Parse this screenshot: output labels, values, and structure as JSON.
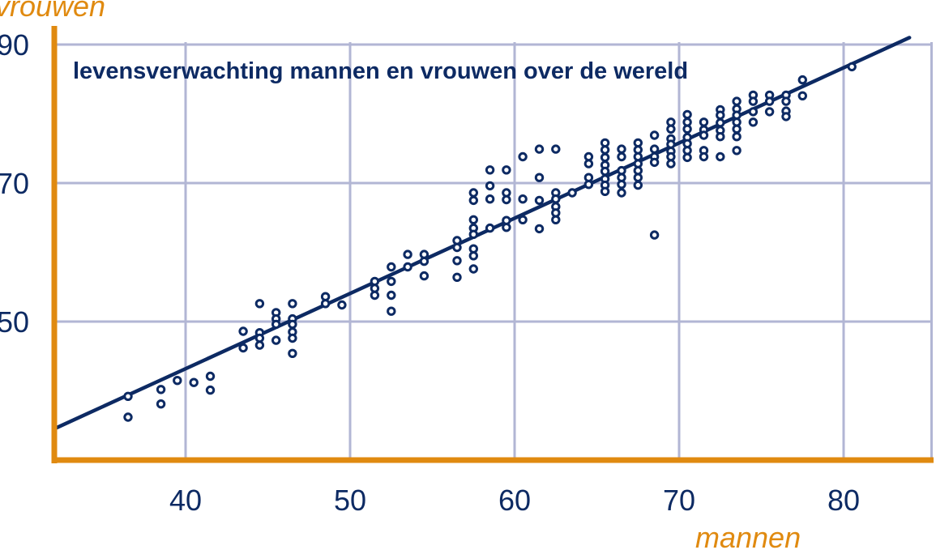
{
  "colors": {
    "grid": "#b2b6d4",
    "axis": "#e08a10",
    "point": "#0d2a63",
    "trendline": "#0d2a63",
    "text": "#0d2a63",
    "axis_title": "#e08a10"
  },
  "chart_data": {
    "type": "scatter",
    "title": "levensverwachting mannen en vrouwen over de wereld",
    "xlabel": "mannen",
    "ylabel": "vrouwen",
    "xlim": [
      32,
      85
    ],
    "ylim": [
      30,
      91
    ],
    "xticks": [
      40,
      50,
      60,
      70,
      80
    ],
    "yticks": [
      50,
      70,
      90
    ],
    "grid": true,
    "legend": "none",
    "trendline": {
      "x": [
        32,
        84
      ],
      "y": [
        34.5,
        91
      ]
    },
    "points": [
      [
        36.5,
        39.2
      ],
      [
        36.5,
        36.2
      ],
      [
        38.5,
        40.2
      ],
      [
        38.5,
        38.1
      ],
      [
        39.5,
        41.5
      ],
      [
        40.5,
        41.2
      ],
      [
        41.5,
        42.1
      ],
      [
        41.5,
        40.1
      ],
      [
        43.5,
        48.6
      ],
      [
        43.5,
        46.2
      ],
      [
        44.5,
        52.6
      ],
      [
        44.5,
        48.4
      ],
      [
        44.5,
        47.6
      ],
      [
        44.5,
        46.6
      ],
      [
        45.5,
        51.3
      ],
      [
        45.5,
        50.4
      ],
      [
        45.5,
        49.6
      ],
      [
        45.5,
        47.3
      ],
      [
        46.5,
        52.6
      ],
      [
        46.5,
        50.4
      ],
      [
        46.5,
        49.6
      ],
      [
        46.5,
        48.5
      ],
      [
        46.5,
        47.6
      ],
      [
        46.5,
        45.4
      ],
      [
        48.5,
        53.6
      ],
      [
        48.5,
        52.6
      ],
      [
        49.5,
        52.4
      ],
      [
        51.5,
        55.8
      ],
      [
        51.5,
        54.8
      ],
      [
        51.5,
        53.8
      ],
      [
        52.5,
        57.9
      ],
      [
        52.5,
        55.8
      ],
      [
        52.5,
        53.8
      ],
      [
        52.5,
        51.5
      ],
      [
        53.5,
        59.7
      ],
      [
        53.5,
        57.9
      ],
      [
        54.5,
        59.7
      ],
      [
        54.5,
        58.7
      ],
      [
        54.5,
        56.6
      ],
      [
        56.5,
        61.7
      ],
      [
        56.5,
        60.7
      ],
      [
        56.5,
        58.8
      ],
      [
        56.5,
        56.4
      ],
      [
        57.5,
        68.6
      ],
      [
        57.5,
        67.5
      ],
      [
        57.5,
        64.7
      ],
      [
        57.5,
        63.5
      ],
      [
        57.5,
        62.6
      ],
      [
        57.5,
        60.5
      ],
      [
        57.5,
        59.5
      ],
      [
        57.5,
        57.6
      ],
      [
        58.5,
        71.9
      ],
      [
        58.5,
        69.6
      ],
      [
        58.5,
        67.7
      ],
      [
        58.5,
        63.5
      ],
      [
        59.5,
        71.9
      ],
      [
        59.5,
        68.6
      ],
      [
        59.5,
        67.6
      ],
      [
        59.5,
        64.6
      ],
      [
        59.5,
        63.6
      ],
      [
        60.5,
        73.8
      ],
      [
        60.5,
        67.7
      ],
      [
        60.5,
        64.7
      ],
      [
        61.5,
        74.9
      ],
      [
        61.5,
        70.8
      ],
      [
        61.5,
        67.5
      ],
      [
        61.5,
        63.4
      ],
      [
        62.5,
        74.9
      ],
      [
        62.5,
        68.6
      ],
      [
        62.5,
        67.7
      ],
      [
        62.5,
        66.6
      ],
      [
        62.5,
        65.7
      ],
      [
        62.5,
        64.7
      ],
      [
        63.5,
        68.6
      ],
      [
        64.5,
        73.8
      ],
      [
        64.5,
        72.8
      ],
      [
        64.5,
        70.8
      ],
      [
        64.5,
        69.8
      ],
      [
        65.5,
        75.8
      ],
      [
        65.5,
        74.8
      ],
      [
        65.5,
        73.7
      ],
      [
        65.5,
        72.6
      ],
      [
        65.5,
        71.7
      ],
      [
        65.5,
        70.6
      ],
      [
        65.5,
        69.7
      ],
      [
        65.5,
        68.8
      ],
      [
        66.5,
        74.9
      ],
      [
        66.5,
        73.8
      ],
      [
        66.5,
        71.8
      ],
      [
        66.5,
        70.8
      ],
      [
        66.5,
        69.8
      ],
      [
        66.5,
        68.6
      ],
      [
        67.5,
        75.8
      ],
      [
        67.5,
        74.8
      ],
      [
        67.5,
        73.8
      ],
      [
        67.5,
        72.8
      ],
      [
        67.5,
        71.8
      ],
      [
        67.5,
        70.8
      ],
      [
        67.5,
        69.7
      ],
      [
        68.5,
        76.9
      ],
      [
        68.5,
        74.9
      ],
      [
        68.5,
        73.8
      ],
      [
        68.5,
        73.0
      ],
      [
        68.5,
        62.5
      ],
      [
        69.5,
        78.8
      ],
      [
        69.5,
        77.8
      ],
      [
        69.5,
        76.4
      ],
      [
        69.5,
        75.6
      ],
      [
        69.5,
        74.6
      ],
      [
        69.5,
        73.8
      ],
      [
        69.5,
        72.8
      ],
      [
        70.5,
        79.9
      ],
      [
        70.5,
        78.8
      ],
      [
        70.5,
        77.8
      ],
      [
        70.5,
        76.6
      ],
      [
        70.5,
        75.7
      ],
      [
        70.5,
        74.7
      ],
      [
        70.5,
        73.7
      ],
      [
        71.5,
        78.8
      ],
      [
        71.5,
        77.7
      ],
      [
        71.5,
        76.9
      ],
      [
        71.5,
        74.7
      ],
      [
        71.5,
        73.8
      ],
      [
        72.5,
        80.6
      ],
      [
        72.5,
        79.8
      ],
      [
        72.5,
        78.7
      ],
      [
        72.5,
        77.6
      ],
      [
        72.5,
        76.7
      ],
      [
        72.5,
        73.8
      ],
      [
        73.5,
        81.8
      ],
      [
        73.5,
        80.7
      ],
      [
        73.5,
        79.8
      ],
      [
        73.5,
        78.8
      ],
      [
        73.5,
        77.8
      ],
      [
        73.5,
        76.7
      ],
      [
        73.5,
        74.7
      ],
      [
        74.5,
        82.7
      ],
      [
        74.5,
        81.8
      ],
      [
        74.5,
        80.3
      ],
      [
        74.5,
        78.8
      ],
      [
        75.5,
        82.7
      ],
      [
        75.5,
        81.8
      ],
      [
        75.5,
        80.3
      ],
      [
        76.5,
        82.7
      ],
      [
        76.5,
        81.8
      ],
      [
        76.5,
        80.4
      ],
      [
        76.5,
        79.6
      ],
      [
        77.5,
        84.9
      ],
      [
        77.5,
        82.6
      ],
      [
        80.5,
        86.8
      ]
    ]
  }
}
